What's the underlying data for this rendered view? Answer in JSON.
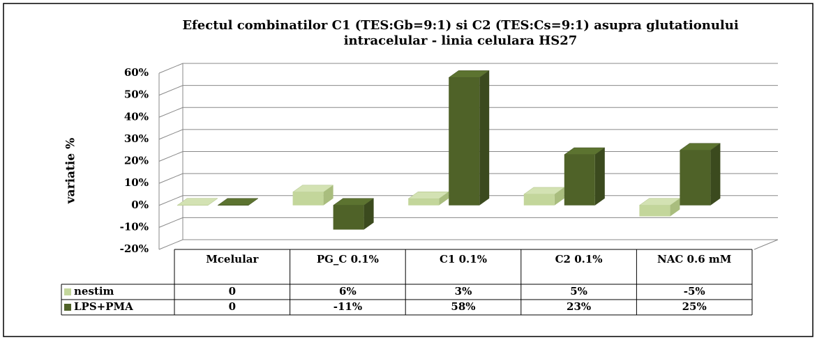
{
  "chart_data": {
    "type": "bar3d",
    "title": "Efectul combinatilor C1 (TES:Gb=9:1) si C2 (TES:Cs=9:1) asupra glutationului intracelular - linia celulara HS27",
    "y_label": "variatie %",
    "categories": [
      "Mcelular",
      "PG_C 0.1%",
      "C1 0.1%",
      "C2 0.1%",
      "NAC 0.6 mM"
    ],
    "series": [
      {
        "name": "nestim",
        "color": "#c3d69b",
        "values": [
          0,
          6,
          3,
          5,
          -5
        ],
        "value_labels": [
          "0",
          "6%",
          "3%",
          "5%",
          "-5%"
        ]
      },
      {
        "name": "LPS+PMA",
        "color": "#4f6228",
        "values": [
          0,
          -11,
          58,
          23,
          25
        ],
        "value_labels": [
          "0",
          "-11%",
          "58%",
          "23%",
          "25%"
        ]
      }
    ],
    "ylim": [
      -20,
      60
    ],
    "yticks": [
      {
        "value": -20,
        "label": "-20%"
      },
      {
        "value": -10,
        "label": "-10%"
      },
      {
        "value": 0,
        "label": "0%"
      },
      {
        "value": 10,
        "label": "10%"
      },
      {
        "value": 20,
        "label": "20%"
      },
      {
        "value": 30,
        "label": "30%"
      },
      {
        "value": 40,
        "label": "40%"
      },
      {
        "value": 50,
        "label": "50%"
      },
      {
        "value": 60,
        "label": "60%"
      }
    ],
    "grid": true
  }
}
